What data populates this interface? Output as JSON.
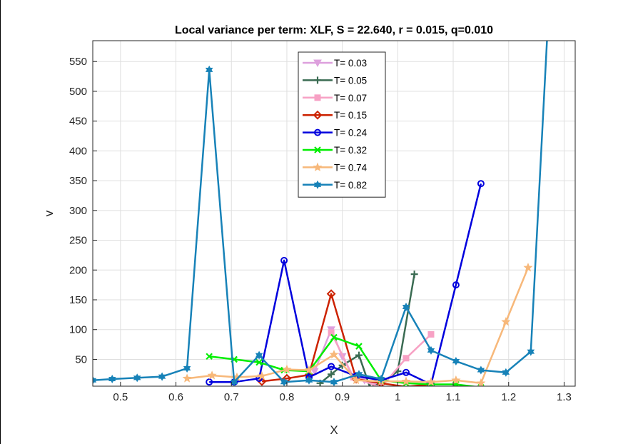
{
  "chart_data": {
    "type": "line",
    "title": "Local variance per term: XLF, S = 22.640, r = 0.015, q=0.010",
    "xlabel": "X",
    "ylabel": "v",
    "xlim": [
      0.45,
      1.32
    ],
    "ylim": [
      5,
      585
    ],
    "xticks": [
      0.5,
      0.6,
      0.7,
      0.8,
      0.9,
      1.0,
      1.1,
      1.2,
      1.3
    ],
    "xtick_labels": [
      "0.5",
      "0.6",
      "0.7",
      "0.8",
      "0.9",
      "1",
      "1.1",
      "1.2",
      "1.3"
    ],
    "yticks": [
      50,
      100,
      150,
      200,
      250,
      300,
      350,
      400,
      450,
      500,
      550
    ],
    "ytick_labels": [
      "50",
      "100",
      "150",
      "200",
      "250",
      "300",
      "350",
      "400",
      "450",
      "500",
      "550"
    ],
    "grid": true,
    "legend_position": "top-center",
    "series": [
      {
        "name": "T= 0.03",
        "color": "#dda0dd",
        "marker": "triangle-down",
        "x": [
          0.85,
          0.88,
          0.9,
          0.92,
          0.94,
          0.96
        ],
        "y": [
          30,
          100,
          55,
          20,
          15,
          10
        ]
      },
      {
        "name": "T= 0.05",
        "color": "#3a6b52",
        "marker": "plus",
        "x": [
          0.86,
          0.88,
          0.9,
          0.93,
          0.95,
          0.97,
          1.0,
          1.03
        ],
        "y": [
          10,
          25,
          40,
          57,
          3,
          10,
          30,
          193
        ]
      },
      {
        "name": "T= 0.07",
        "color": "#f7a1c4",
        "marker": "square",
        "x": [
          0.88,
          0.92,
          0.97,
          1.015,
          1.06
        ],
        "y": [
          95,
          20,
          3,
          52,
          92
        ]
      },
      {
        "name": "T= 0.15",
        "color": "#cc2200",
        "marker": "diamond",
        "x": [
          0.755,
          0.8,
          0.84,
          0.88,
          0.925,
          0.97,
          1.015,
          1.06
        ],
        "y": [
          13,
          18,
          24,
          160,
          17,
          10,
          4,
          8
        ]
      },
      {
        "name": "T= 0.24",
        "color": "#0000dd",
        "marker": "circle",
        "x": [
          0.66,
          0.705,
          0.75,
          0.795,
          0.84,
          0.88,
          0.925,
          0.97,
          1.015,
          1.06,
          1.105,
          1.15
        ],
        "y": [
          12,
          12,
          18,
          216,
          20,
          38,
          22,
          15,
          28,
          8,
          175,
          345
        ]
      },
      {
        "name": "T= 0.32",
        "color": "#00ee00",
        "marker": "x",
        "x": [
          0.66,
          0.705,
          0.75,
          0.795,
          0.84,
          0.885,
          0.93,
          0.97,
          1.015,
          1.06,
          1.105,
          1.15
        ],
        "y": [
          55,
          50,
          45,
          32,
          30,
          87,
          72,
          15,
          10,
          8,
          8,
          3
        ]
      },
      {
        "name": "T= 0.74",
        "color": "#f7b87a",
        "marker": "pentagram",
        "x": [
          0.62,
          0.665,
          0.71,
          0.755,
          0.8,
          0.84,
          0.885,
          0.925,
          0.97,
          1.015,
          1.06,
          1.105,
          1.15,
          1.195,
          1.235
        ],
        "y": [
          18,
          23,
          20,
          22,
          33,
          32,
          58,
          15,
          13,
          13,
          12,
          15,
          10,
          113,
          204
        ]
      },
      {
        "name": "T= 0.82",
        "color": "#1782b8",
        "marker": "hexagram",
        "x": [
          0.45,
          0.485,
          0.53,
          0.575,
          0.62,
          0.66,
          0.705,
          0.75,
          0.795,
          0.84,
          0.885,
          0.93,
          0.97,
          1.015,
          1.06,
          1.105,
          1.15,
          1.195,
          1.24,
          1.27
        ],
        "y": [
          15,
          17,
          19,
          21,
          35,
          536,
          12,
          57,
          12,
          15,
          12,
          25,
          17,
          138,
          65,
          47,
          32,
          28,
          63,
          600
        ]
      }
    ]
  }
}
